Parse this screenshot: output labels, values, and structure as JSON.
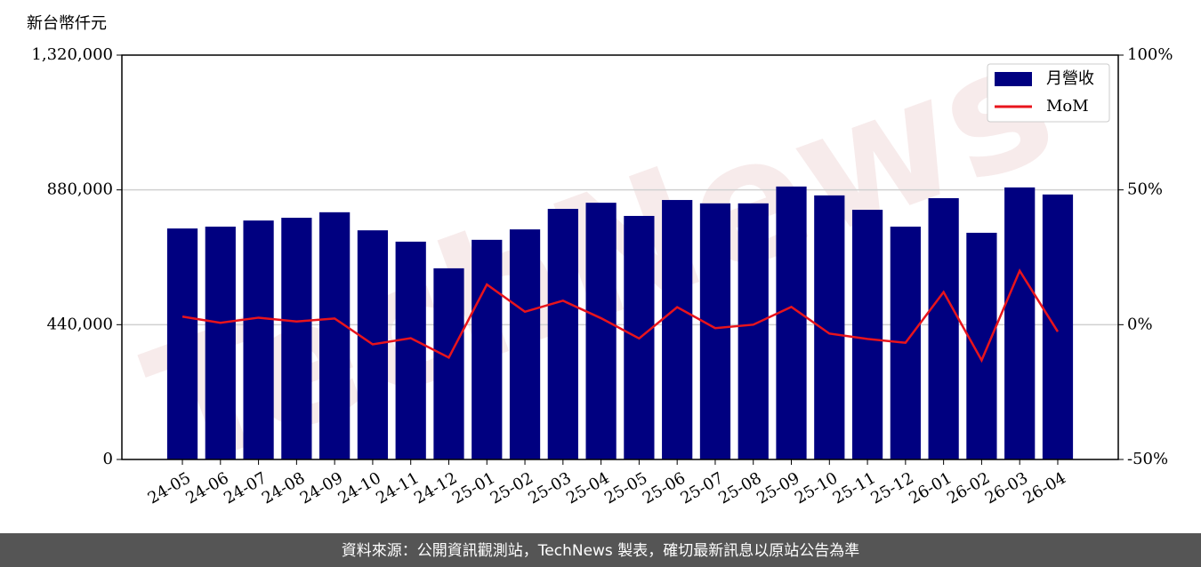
{
  "chart_data": {
    "type": "bar",
    "y_label": "新台幣仟元",
    "categories": [
      "24-05",
      "24-06",
      "24-07",
      "24-08",
      "24-09",
      "24-10",
      "24-11",
      "24-12",
      "25-01",
      "25-02",
      "25-03",
      "25-04",
      "25-05",
      "25-06",
      "25-07",
      "25-08",
      "25-09",
      "25-10",
      "25-11",
      "25-12",
      "26-01",
      "26-02",
      "26-03",
      "26-04"
    ],
    "series": [
      {
        "name": "月營收",
        "type": "bar",
        "color": "#000080",
        "values": [
          754000,
          760000,
          780000,
          789000,
          807000,
          748000,
          711000,
          624000,
          717000,
          751000,
          818000,
          838000,
          795000,
          847000,
          836000,
          836000,
          891000,
          862000,
          815000,
          760000,
          853000,
          740000,
          888000,
          865000
        ]
      },
      {
        "name": "MoM",
        "type": "line",
        "axis": "y2",
        "color": "#e8141c",
        "values": [
          3.0,
          0.7,
          2.6,
          1.2,
          2.3,
          -7.3,
          -5.0,
          -12.2,
          14.9,
          4.8,
          8.9,
          2.4,
          -5.1,
          6.5,
          -1.3,
          0.0,
          6.6,
          -3.3,
          -5.3,
          -6.7,
          12.1,
          -13.2,
          20.0,
          -2.6
        ]
      }
    ],
    "ylim": [
      0,
      1320000
    ],
    "yticks": [
      0,
      {
        "value": 440000,
        "label": "440,000"
      },
      {
        "value": 880000,
        "label": "880,000"
      },
      {
        "value": 1320000,
        "label": "1,320,000"
      }
    ],
    "y2lim": [
      -50,
      100
    ],
    "y2ticks": [
      {
        "value": -50,
        "label": "-50%"
      },
      {
        "value": 0,
        "label": "0%"
      },
      {
        "value": 50,
        "label": "50%"
      },
      {
        "value": 100,
        "label": "100%"
      }
    ],
    "grid": true,
    "legend": "upper right",
    "watermark": "TechNews",
    "footer": "資料來源：公開資訊觀測站，TechNews 製表，確切最新訊息以原站公告為準"
  }
}
